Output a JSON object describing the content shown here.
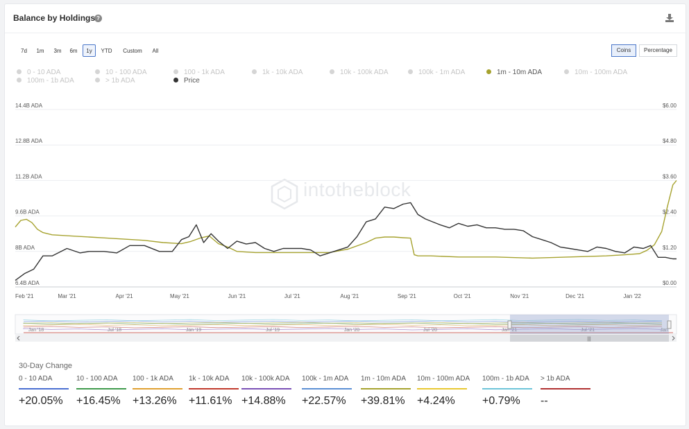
{
  "title": "Balance by Holdings",
  "ranges": [
    "7d",
    "1m",
    "3m",
    "6m",
    "1y",
    "YTD",
    "Custom",
    "All"
  ],
  "active_range": "1y",
  "units": [
    "Coins",
    "Percentage"
  ],
  "active_unit": "Coins",
  "legend": [
    {
      "label": "0 - 10 ADA",
      "on": false
    },
    {
      "label": "10 - 100 ADA",
      "on": false
    },
    {
      "label": "100 - 1k ADA",
      "on": false
    },
    {
      "label": "1k - 10k ADA",
      "on": false
    },
    {
      "label": "10k - 100k ADA",
      "on": false
    },
    {
      "label": "100k - 1m ADA",
      "on": false
    },
    {
      "label": "1m - 10m ADA",
      "on": true,
      "color": "#a6a22e"
    },
    {
      "label": "10m - 100m ADA",
      "on": false
    },
    {
      "label": "100m - 1b ADA",
      "on": false
    },
    {
      "label": "> 1b ADA",
      "on": false
    },
    {
      "label": "Price",
      "on": true,
      "color": "#333333"
    }
  ],
  "watermark": "intotheblock",
  "chart_data": {
    "type": "line",
    "y_left_ticks": [
      "14.4B ADA",
      "12.8B ADA",
      "11.2B ADA",
      "9.6B ADA",
      "8B ADA",
      "6.4B ADA"
    ],
    "y_left_values": [
      14.4,
      12.8,
      11.2,
      9.6,
      8.0,
      6.4
    ],
    "y_left_range": [
      6.4,
      14.4
    ],
    "y_right_ticks": [
      "$6.00",
      "$4.80",
      "$3.60",
      "$2.40",
      "$1.20",
      "$0.00"
    ],
    "y_right_values": [
      6.0,
      4.8,
      3.6,
      2.4,
      1.2,
      0.0
    ],
    "y_right_range": [
      0,
      6
    ],
    "x_ticks": [
      "Feb '21",
      "Mar '21",
      "Apr '21",
      "May '21",
      "Jun '21",
      "Jul '21",
      "Aug '21",
      "Sep '21",
      "Oct '21",
      "Nov '21",
      "Dec '21",
      "Jan '22"
    ],
    "x_range_days": [
      0,
      358
    ],
    "x_tick_days": [
      0,
      28,
      59,
      89,
      120,
      150,
      181,
      212,
      242,
      273,
      303,
      334
    ],
    "series": [
      {
        "name": "1m - 10m ADA",
        "axis": "left",
        "color": "#a6a22e",
        "x": [
          0,
          3,
          6,
          9,
          12,
          15,
          20,
          30,
          40,
          50,
          60,
          70,
          80,
          90,
          95,
          100,
          105,
          110,
          115,
          120,
          130,
          140,
          150,
          160,
          170,
          180,
          190,
          195,
          200,
          205,
          210,
          214,
          216,
          218,
          225,
          240,
          260,
          280,
          300,
          320,
          330,
          338,
          342,
          346,
          350,
          353,
          356,
          358
        ],
        "y": [
          9.1,
          9.4,
          9.45,
          9.3,
          9.0,
          8.85,
          8.75,
          8.7,
          8.65,
          8.6,
          8.55,
          8.5,
          8.4,
          8.35,
          8.45,
          8.6,
          8.7,
          8.35,
          8.2,
          8.0,
          7.95,
          7.95,
          7.95,
          7.95,
          7.95,
          8.1,
          8.4,
          8.6,
          8.65,
          8.65,
          8.62,
          8.6,
          7.85,
          7.8,
          7.8,
          7.75,
          7.75,
          7.7,
          7.75,
          7.8,
          7.85,
          7.9,
          8.05,
          8.3,
          8.9,
          10.0,
          11.0,
          11.2
        ]
      },
      {
        "name": "Price",
        "axis": "right",
        "color": "#333333",
        "x": [
          0,
          5,
          10,
          15,
          20,
          28,
          35,
          40,
          48,
          55,
          62,
          70,
          78,
          85,
          90,
          94,
          98,
          102,
          106,
          110,
          115,
          120,
          125,
          130,
          135,
          140,
          145,
          150,
          155,
          160,
          165,
          170,
          175,
          180,
          185,
          190,
          195,
          200,
          205,
          210,
          214,
          218,
          222,
          226,
          230,
          235,
          240,
          245,
          250,
          255,
          260,
          265,
          270,
          275,
          280,
          285,
          290,
          295,
          300,
          305,
          310,
          315,
          320,
          325,
          330,
          335,
          340,
          344,
          348,
          352,
          356,
          358
        ],
        "y": [
          0.22,
          0.45,
          0.6,
          1.05,
          1.05,
          1.3,
          1.15,
          1.2,
          1.2,
          1.15,
          1.4,
          1.4,
          1.2,
          1.2,
          1.6,
          1.7,
          2.1,
          1.5,
          1.8,
          1.55,
          1.3,
          1.55,
          1.45,
          1.5,
          1.3,
          1.2,
          1.3,
          1.3,
          1.3,
          1.25,
          1.05,
          1.15,
          1.25,
          1.35,
          1.7,
          2.2,
          2.3,
          2.7,
          2.65,
          2.8,
          2.85,
          2.45,
          2.3,
          2.2,
          2.1,
          2.0,
          2.15,
          2.05,
          2.1,
          2.0,
          2.0,
          1.95,
          1.95,
          1.9,
          1.7,
          1.6,
          1.5,
          1.35,
          1.3,
          1.25,
          1.2,
          1.35,
          1.3,
          1.2,
          1.15,
          1.35,
          1.3,
          1.4,
          1.0,
          1.0,
          0.95,
          0.95
        ]
      }
    ],
    "navigator_ticks": [
      "Jan '18",
      "Jul '18",
      "Jan '19",
      "Jul '19",
      "Jan '20",
      "Jul '20",
      "Jan '21",
      "Jul '21",
      "Jan"
    ]
  },
  "change": {
    "title": "30-Day Change",
    "items": [
      {
        "label": "0 - 10 ADA",
        "value": "+20.05%",
        "color": "#4a6fd1"
      },
      {
        "label": "10 - 100 ADA",
        "value": "+16.45%",
        "color": "#3f9a4c"
      },
      {
        "label": "100 - 1k ADA",
        "value": "+13.26%",
        "color": "#e0a030"
      },
      {
        "label": "1k - 10k ADA",
        "value": "+11.61%",
        "color": "#c0392b"
      },
      {
        "label": "10k - 100k ADA",
        "value": "+14.88%",
        "color": "#7a4fb6"
      },
      {
        "label": "100k - 1m ADA",
        "value": "+22.57%",
        "color": "#5b8fd4"
      },
      {
        "label": "1m - 10m ADA",
        "value": "+39.81%",
        "color": "#a6a22e"
      },
      {
        "label": "10m - 100m ADA",
        "value": "+4.24%",
        "color": "#e8c830"
      },
      {
        "label": "100m - 1b ADA",
        "value": "+0.79%",
        "color": "#6dc4d8"
      },
      {
        "label": "> 1b ADA",
        "value": "--",
        "color": "#b03030"
      }
    ]
  }
}
